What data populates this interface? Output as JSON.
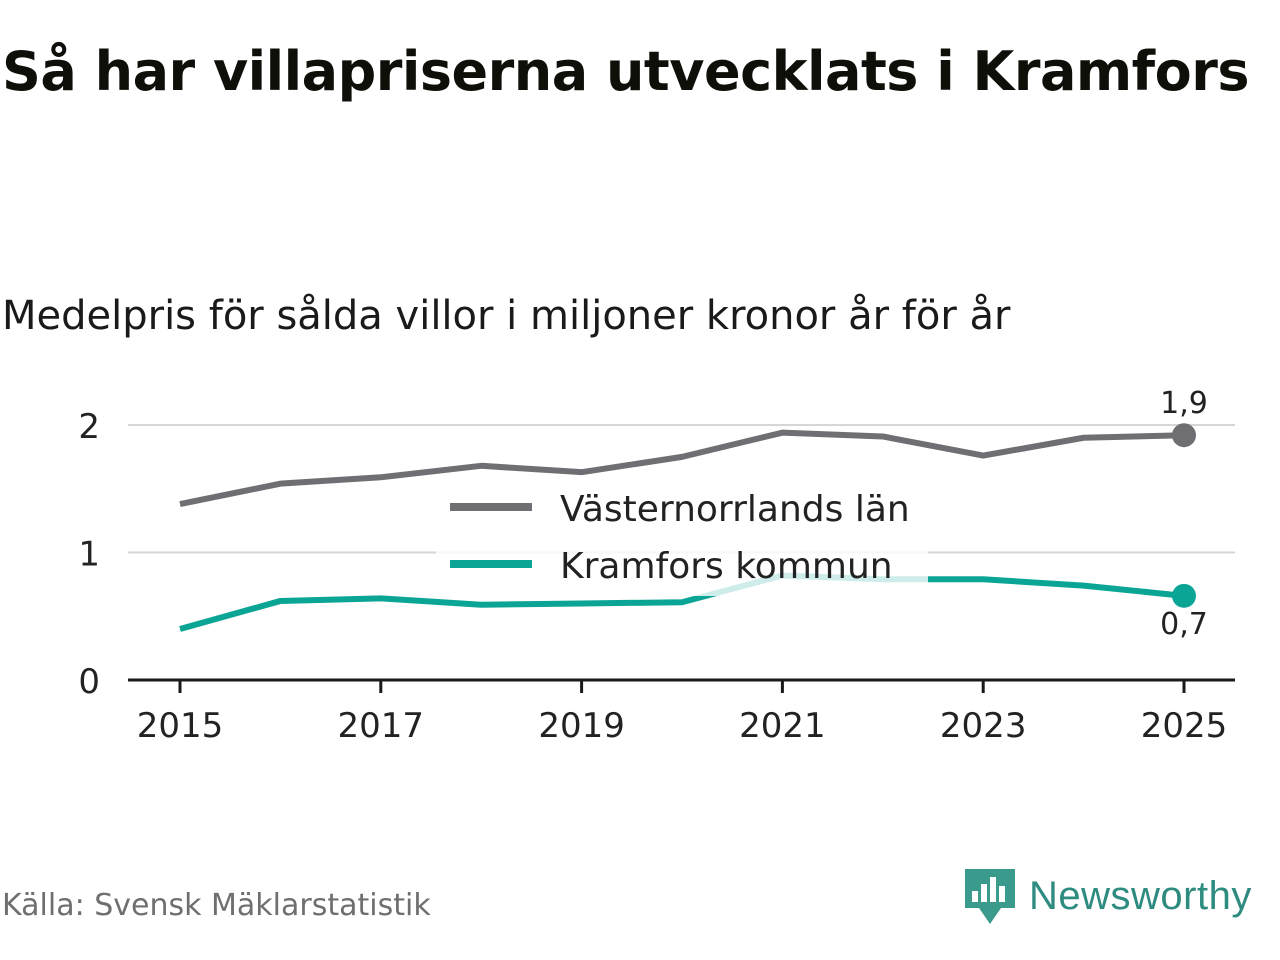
{
  "title": "Så har villapriserna utvecklats i Kramfors",
  "subtitle": "Medelpris för sålda villor i miljoner kronor år för år",
  "source": "Källa: Svensk Mäklarstatistik",
  "brand": {
    "name": "Newsworthy",
    "icon": "newsworthy-logo-icon",
    "color": "#3a9a8c"
  },
  "colors": {
    "lan": "#6f6e73",
    "kommun": "#0ba595",
    "grid": "#d6d6d6",
    "axis": "#1a1a1a",
    "text": "#222222"
  },
  "chart_data": {
    "type": "line",
    "title": "Så har villapriserna utvecklats i Kramfors",
    "ylabel": "Medelpris för sålda villor i miljoner kronor år för år",
    "xlabel": "",
    "x": [
      2015,
      2016,
      2017,
      2018,
      2019,
      2020,
      2021,
      2022,
      2023,
      2024,
      2025
    ],
    "xticks": [
      "2015",
      "2017",
      "2019",
      "2021",
      "2023",
      "2025"
    ],
    "yticks": [
      "0",
      "1",
      "2"
    ],
    "ylim": [
      0,
      2.1
    ],
    "grid": true,
    "legend_position": "center",
    "series": [
      {
        "name": "Västernorrlands län",
        "color": "#6f6e73",
        "values": [
          1.38,
          1.54,
          1.59,
          1.68,
          1.63,
          1.75,
          1.94,
          1.91,
          1.76,
          1.9,
          1.92
        ],
        "end_label": "1,9"
      },
      {
        "name": "Kramfors kommun",
        "color": "#0ba595",
        "values": [
          0.4,
          0.62,
          0.64,
          0.59,
          0.6,
          0.61,
          0.82,
          0.79,
          0.79,
          0.74,
          0.66
        ],
        "end_label": "0,7"
      }
    ]
  }
}
